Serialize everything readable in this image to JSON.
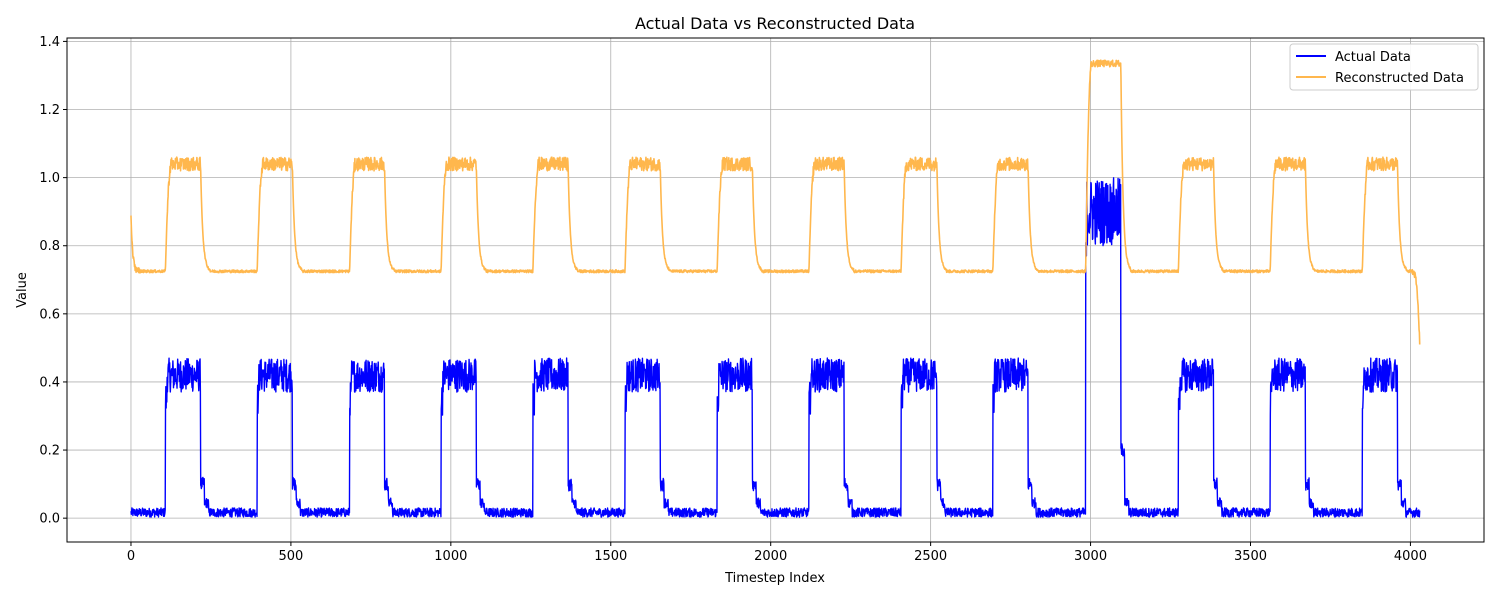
{
  "chart_data": {
    "type": "line",
    "title": "Actual Data vs Reconstructed Data",
    "xlabel": "Timestep Index",
    "ylabel": "Value",
    "xlim": [
      -200,
      4230
    ],
    "ylim": [
      -0.07,
      1.41
    ],
    "x_ticks": [
      0,
      500,
      1000,
      1500,
      2000,
      2500,
      3000,
      3500,
      4000
    ],
    "x_tick_labels": [
      "0",
      "500",
      "1000",
      "1500",
      "2000",
      "2500",
      "3000",
      "3500",
      "4000"
    ],
    "y_ticks": [
      0.0,
      0.2,
      0.4,
      0.6,
      0.8,
      1.0,
      1.2,
      1.4
    ],
    "y_tick_labels": [
      "0.0",
      "0.2",
      "0.4",
      "0.6",
      "0.8",
      "1.0",
      "1.2",
      "1.4"
    ],
    "grid": true,
    "legend_position": "top-right",
    "n_points": 4030,
    "pulse_segments": [
      {
        "start": 108,
        "end": 218,
        "actual_low": 0.0,
        "actual_high": 0.47,
        "recon_low": 0.72,
        "recon_high": 1.06
      },
      {
        "start": 395,
        "end": 505,
        "actual_low": 0.0,
        "actual_high": 0.47,
        "recon_low": 0.72,
        "recon_high": 1.06
      },
      {
        "start": 684,
        "end": 793,
        "actual_low": 0.0,
        "actual_high": 0.47,
        "recon_low": 0.72,
        "recon_high": 1.06
      },
      {
        "start": 970,
        "end": 1080,
        "actual_low": 0.0,
        "actual_high": 0.47,
        "recon_low": 0.72,
        "recon_high": 1.06
      },
      {
        "start": 1257,
        "end": 1367,
        "actual_low": 0.0,
        "actual_high": 0.47,
        "recon_low": 0.72,
        "recon_high": 1.06
      },
      {
        "start": 1545,
        "end": 1655,
        "actual_low": 0.0,
        "actual_high": 0.47,
        "recon_low": 0.72,
        "recon_high": 1.06
      },
      {
        "start": 1833,
        "end": 1943,
        "actual_low": 0.0,
        "actual_high": 0.47,
        "recon_low": 0.72,
        "recon_high": 1.06
      },
      {
        "start": 2120,
        "end": 2230,
        "actual_low": 0.0,
        "actual_high": 0.47,
        "recon_low": 0.72,
        "recon_high": 1.06
      },
      {
        "start": 2408,
        "end": 2520,
        "actual_low": 0.0,
        "actual_high": 0.47,
        "recon_low": 0.72,
        "recon_high": 1.06
      },
      {
        "start": 2695,
        "end": 2805,
        "actual_low": 0.0,
        "actual_high": 0.47,
        "recon_low": 0.72,
        "recon_high": 1.06
      },
      {
        "start": 2985,
        "end": 3095,
        "actual_low": 0.0,
        "actual_high": 1.0,
        "recon_low": 0.72,
        "recon_high": 1.34
      },
      {
        "start": 3275,
        "end": 3385,
        "actual_low": 0.0,
        "actual_high": 0.47,
        "recon_low": 0.72,
        "recon_high": 1.06
      },
      {
        "start": 3562,
        "end": 3672,
        "actual_low": 0.0,
        "actual_high": 0.47,
        "recon_low": 0.72,
        "recon_high": 1.06
      },
      {
        "start": 3850,
        "end": 3960,
        "actual_low": 0.0,
        "actual_high": 0.47,
        "recon_low": 0.72,
        "recon_high": 1.06
      }
    ],
    "series": [
      {
        "name": "Actual Data",
        "color": "#0000ff",
        "baseline": 0.02,
        "pulse_band": [
          0.37,
          0.47
        ],
        "tail_value": 0.02
      },
      {
        "name": "Reconstructed Data",
        "color": "#ffb74d",
        "baseline": 0.725,
        "pulse_band": [
          1.02,
          1.06
        ],
        "start_value": 0.89,
        "end_value": 0.51
      }
    ]
  }
}
